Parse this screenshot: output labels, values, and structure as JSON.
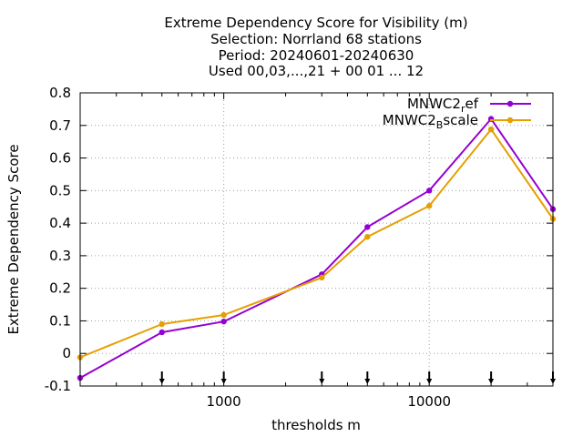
{
  "chart_data": {
    "type": "line",
    "title_lines": [
      "Extreme Dependency Score  for Visibility (m)",
      "Selection: Norrland     68 stations",
      "Period: 20240601-20240630",
      "Used 00,03,...,21 + 00 01 ... 12"
    ],
    "xlabel": "thresholds m",
    "ylabel": "Extreme Dependency Score",
    "x_scale": "log",
    "xlim": [
      200,
      40000
    ],
    "ylim": [
      -0.1,
      0.8
    ],
    "grid": true,
    "legend_position": "top-right",
    "x_ticks": [
      {
        "value": 1000,
        "label": "1000"
      },
      {
        "value": 10000,
        "label": "10000"
      }
    ],
    "y_ticks": [
      {
        "value": -0.1,
        "label": "-0.1"
      },
      {
        "value": 0,
        "label": "0"
      },
      {
        "value": 0.1,
        "label": "0.1"
      },
      {
        "value": 0.2,
        "label": "0.2"
      },
      {
        "value": 0.3,
        "label": "0.3"
      },
      {
        "value": 0.4,
        "label": "0.4"
      },
      {
        "value": 0.5,
        "label": "0.5"
      },
      {
        "value": 0.6,
        "label": "0.6"
      },
      {
        "value": 0.7,
        "label": "0.7"
      },
      {
        "value": 0.8,
        "label": "0.8"
      }
    ],
    "threshold_markers": [
      500,
      1000,
      3000,
      5000,
      10000,
      20000,
      40000
    ],
    "series": [
      {
        "name_main": "MNWC2",
        "name_sub": "r",
        "name_tail": "ef",
        "color": "#9400d3",
        "x": [
          200,
          500,
          1000,
          3000,
          5000,
          10000,
          20000,
          40000
        ],
        "y": [
          -0.075,
          0.065,
          0.098,
          0.243,
          0.388,
          0.5,
          0.72,
          0.443
        ]
      },
      {
        "name_main": "MNWC2",
        "name_sub": "B",
        "name_tail": "scale",
        "color": "#e69f00",
        "x": [
          200,
          500,
          1000,
          3000,
          5000,
          10000,
          20000,
          40000
        ],
        "y": [
          -0.012,
          0.09,
          0.118,
          0.233,
          0.358,
          0.453,
          0.688,
          0.413
        ]
      }
    ]
  }
}
